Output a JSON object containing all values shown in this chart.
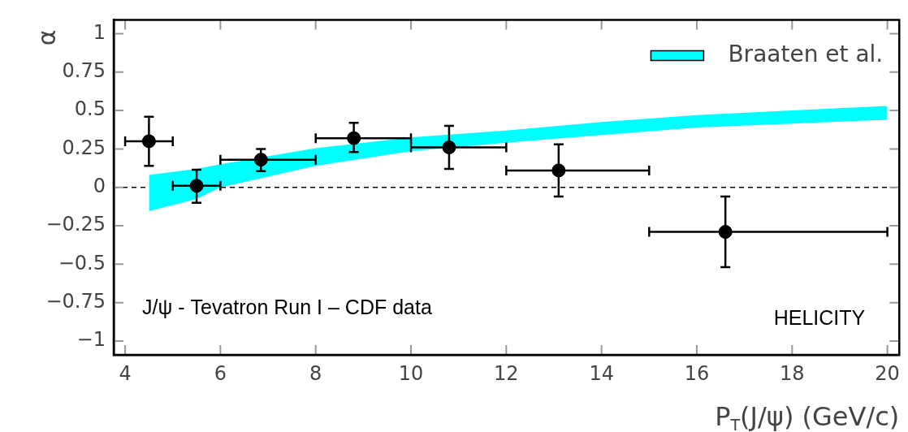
{
  "chart_data": {
    "type": "scatter",
    "xlabel": "P$_{T}$(J/ψ) (GeV/c)",
    "ylabel": "α",
    "xlim": [
      3.76,
      20.25
    ],
    "ylim": [
      -1.09,
      1.09
    ],
    "xticks": [
      4,
      6,
      8,
      10,
      12,
      14,
      16,
      18,
      20
    ],
    "yticks": [
      {
        "value": -1,
        "label": "−1"
      },
      {
        "value": -0.75,
        "label": "−0.75"
      },
      {
        "value": -0.5,
        "label": "−0.5"
      },
      {
        "value": -0.25,
        "label": "−0.25"
      },
      0,
      0.25,
      0.5,
      0.75,
      1
    ],
    "series": [
      {
        "name": "Braaten et al.",
        "type": "area",
        "color": "#00ffff",
        "x": [
          4.5,
          5.5,
          6,
          8,
          10,
          12,
          14,
          16,
          18,
          20
        ],
        "values": [
          null,
          null,
          null,
          null,
          null,
          null,
          null,
          null,
          null,
          null
        ],
        "lower": [
          -0.155,
          -0.075,
          0,
          0.14,
          0.235,
          0.29,
          0.34,
          0.39,
          0.415,
          0.44
        ],
        "upper": [
          0.08,
          0.12,
          0.15,
          0.255,
          0.325,
          0.37,
          0.425,
          0.47,
          0.5,
          0.53
        ]
      },
      {
        "type": "scatter",
        "color": "#000000",
        "x": [
          4.5,
          5.5,
          6.85,
          8.8,
          10.8,
          13.1,
          16.6
        ],
        "values": [
          0.3,
          0.01,
          0.18,
          0.32,
          0.26,
          0.11,
          -0.29
        ],
        "errors": [
          [
            0.14,
            0.46
          ],
          [
            -0.1,
            0.115
          ],
          [
            0.105,
            0.25
          ],
          [
            0.23,
            0.42
          ],
          [
            0.12,
            0.4
          ],
          [
            -0.06,
            0.28
          ],
          [
            -0.52,
            -0.06
          ]
        ],
        "xerrors": [
          [
            4,
            5
          ],
          [
            5,
            6
          ],
          [
            6,
            8
          ],
          [
            8,
            10
          ],
          [
            10,
            12
          ],
          [
            12,
            15
          ],
          [
            15,
            20
          ]
        ]
      }
    ],
    "ref_lines": [
      {
        "axis": "y",
        "value": 0,
        "color": "#000000",
        "line_style": "dashed"
      }
    ],
    "annotations": [
      "J/ψ - Tevatron Run I – CDF data",
      "HELICITY"
    ],
    "marker": "circle",
    "legend": "top right",
    "grid": false
  }
}
